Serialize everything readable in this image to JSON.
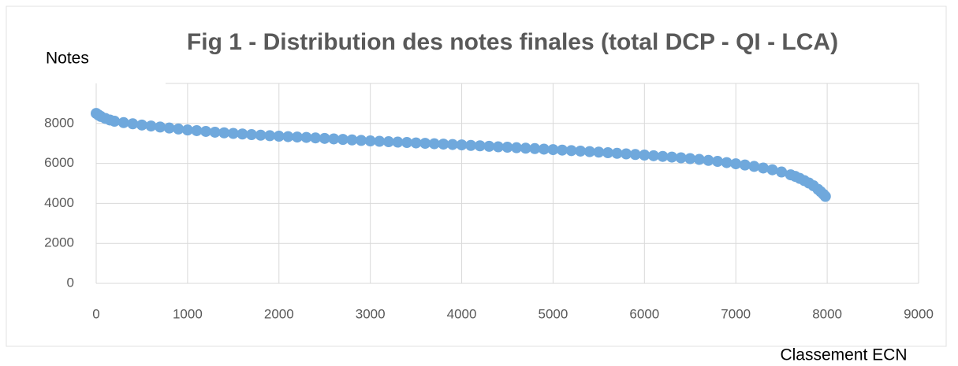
{
  "chart_data": {
    "type": "scatter",
    "title": "Fig 1 - Distribution des notes finales (total DCP - QI - LCA)",
    "y_label": "Notes",
    "x_label": "Classement ECN",
    "color": "#6fa8dc",
    "grid": true,
    "xlim": [
      0,
      9000
    ],
    "xticks": [
      0,
      1000,
      2000,
      3000,
      4000,
      5000,
      6000,
      7000,
      8000,
      9000
    ],
    "ylim": [
      0,
      10000
    ],
    "yticks": [
      0,
      2000,
      4000,
      6000,
      8000
    ],
    "x": [
      0,
      25,
      50,
      100,
      150,
      200,
      300,
      400,
      500,
      600,
      700,
      800,
      900,
      1000,
      1100,
      1200,
      1300,
      1400,
      1500,
      1600,
      1700,
      1800,
      1900,
      2000,
      2100,
      2200,
      2300,
      2400,
      2500,
      2600,
      2700,
      2800,
      2900,
      3000,
      3100,
      3200,
      3300,
      3400,
      3500,
      3600,
      3700,
      3800,
      3900,
      4000,
      4100,
      4200,
      4300,
      4400,
      4500,
      4600,
      4700,
      4800,
      4900,
      5000,
      5100,
      5200,
      5300,
      5400,
      5500,
      5600,
      5700,
      5800,
      5900,
      6000,
      6100,
      6200,
      6300,
      6400,
      6500,
      6600,
      6700,
      6800,
      6900,
      7000,
      7100,
      7200,
      7300,
      7400,
      7500,
      7600,
      7650,
      7700,
      7750,
      7800,
      7850,
      7900,
      7930,
      7960,
      7980
    ],
    "values": [
      8500,
      8420,
      8350,
      8250,
      8170,
      8110,
      8040,
      7980,
      7920,
      7870,
      7820,
      7770,
      7720,
      7670,
      7640,
      7600,
      7560,
      7530,
      7500,
      7470,
      7440,
      7410,
      7385,
      7360,
      7340,
      7320,
      7300,
      7275,
      7250,
      7225,
      7200,
      7175,
      7150,
      7125,
      7105,
      7085,
      7065,
      7045,
      7025,
      7005,
      6985,
      6965,
      6945,
      6925,
      6900,
      6880,
      6855,
      6830,
      6810,
      6785,
      6760,
      6740,
      6715,
      6690,
      6665,
      6640,
      6615,
      6590,
      6565,
      6535,
      6505,
      6475,
      6445,
      6415,
      6385,
      6350,
      6315,
      6280,
      6240,
      6200,
      6150,
      6100,
      6040,
      5980,
      5920,
      5850,
      5770,
      5680,
      5570,
      5430,
      5350,
      5250,
      5140,
      5020,
      4880,
      4700,
      4580,
      4450,
      4350
    ]
  }
}
